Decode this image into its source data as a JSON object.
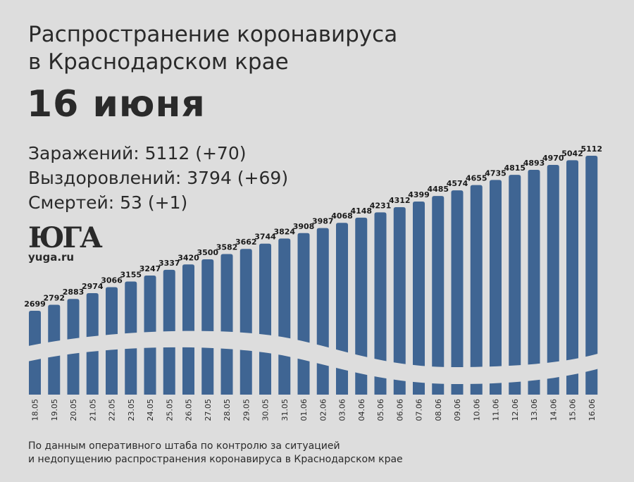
{
  "title_line1": "Распространение коронавируса",
  "title_line2": "в Краснодарском крае",
  "date_heading": "16 июня",
  "stats": [
    "Заражений: 5112 (+70)",
    "Выздоровлений: 3794 (+69)",
    "Смертей: 53 (+1)"
  ],
  "logo": {
    "mark": "ЮГА",
    "site": "yuga.ru"
  },
  "source": [
    "По данным оперативного штаба по контролю за ситуацией",
    "и недопущению распространения коронавируса в Краснодарском крае"
  ],
  "colors": {
    "bar": "#3f6593",
    "background": "#dddddd"
  },
  "chart_data": {
    "type": "bar",
    "title": "Заражений",
    "categories": [
      "18.05",
      "19.05",
      "20.05",
      "21.05",
      "22.05",
      "23.05",
      "24.05",
      "25.05",
      "26.05",
      "27.05",
      "28.05",
      "29.05",
      "30.05",
      "31.05",
      "01.06",
      "02.06",
      "03.06",
      "04.06",
      "05.06",
      "06.06",
      "07.06",
      "08.06",
      "09.06",
      "10.06",
      "11.06",
      "12.06",
      "13.06",
      "14.06",
      "15.06",
      "16.06"
    ],
    "values": [
      2699,
      2792,
      2883,
      2974,
      3066,
      3155,
      3247,
      3337,
      3420,
      3500,
      3582,
      3662,
      3744,
      3824,
      3908,
      3987,
      4068,
      4148,
      4231,
      4312,
      4399,
      4485,
      4574,
      4655,
      4735,
      4815,
      4893,
      4970,
      5042,
      5112
    ],
    "ylim": [
      1394,
      5112
    ],
    "grid": false
  }
}
